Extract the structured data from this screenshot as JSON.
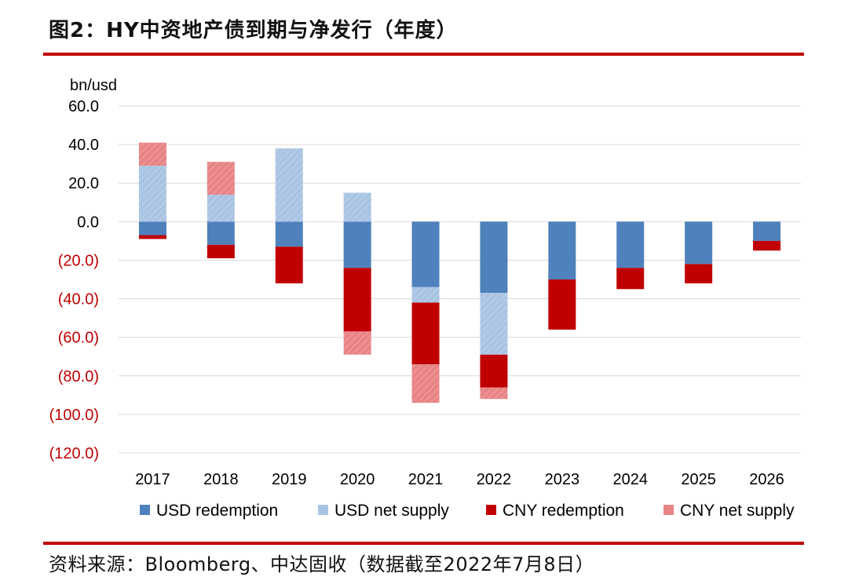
{
  "header": {
    "title": "图2：HY中资地产债到期与净发行（年度）"
  },
  "footer": {
    "source": "资料来源：Bloomberg、中达固收（数据截至2022年7月8日）"
  },
  "colors": {
    "usd_redemption": "#4f81bd",
    "usd_net_supply": "#a9c4e3",
    "cny_redemption": "#c00000",
    "cny_net_supply": "#e88486",
    "negative_tick": "#c00000",
    "positive_tick": "#000000",
    "grid": "#d9d9d9"
  },
  "chart_data": {
    "type": "bar",
    "stacked": true,
    "unit_label": "bn/usd",
    "categories": [
      "2017",
      "2018",
      "2019",
      "2020",
      "2021",
      "2022",
      "2023",
      "2024",
      "2025",
      "2026"
    ],
    "ylim": [
      -120,
      60
    ],
    "yticks": [
      60,
      40,
      20,
      0,
      -20,
      -40,
      -60,
      -80,
      -100,
      -120
    ],
    "ytick_labels": [
      "60.0",
      "40.0",
      "20.0",
      "0.0",
      "(20.0)",
      "(40.0)",
      "(60.0)",
      "(80.0)",
      "(100.0)",
      "(120.0)"
    ],
    "grid": true,
    "legend_position": "bottom",
    "series": [
      {
        "name": "USD redemption",
        "values": [
          -7,
          -12,
          -13,
          -24,
          -34,
          -37,
          -30,
          -24,
          -22,
          -10
        ]
      },
      {
        "name": "USD net supply",
        "values": [
          29,
          14,
          38,
          15,
          -8,
          -32,
          0,
          0,
          0,
          0
        ]
      },
      {
        "name": "CNY redemption",
        "values": [
          -2,
          -7,
          -19,
          -33,
          -32,
          -17,
          -26,
          -11,
          -10,
          -5
        ]
      },
      {
        "name": "CNY net supply",
        "values": [
          12,
          17,
          0,
          -12,
          -20,
          -6,
          0,
          0,
          0,
          0
        ]
      }
    ]
  }
}
